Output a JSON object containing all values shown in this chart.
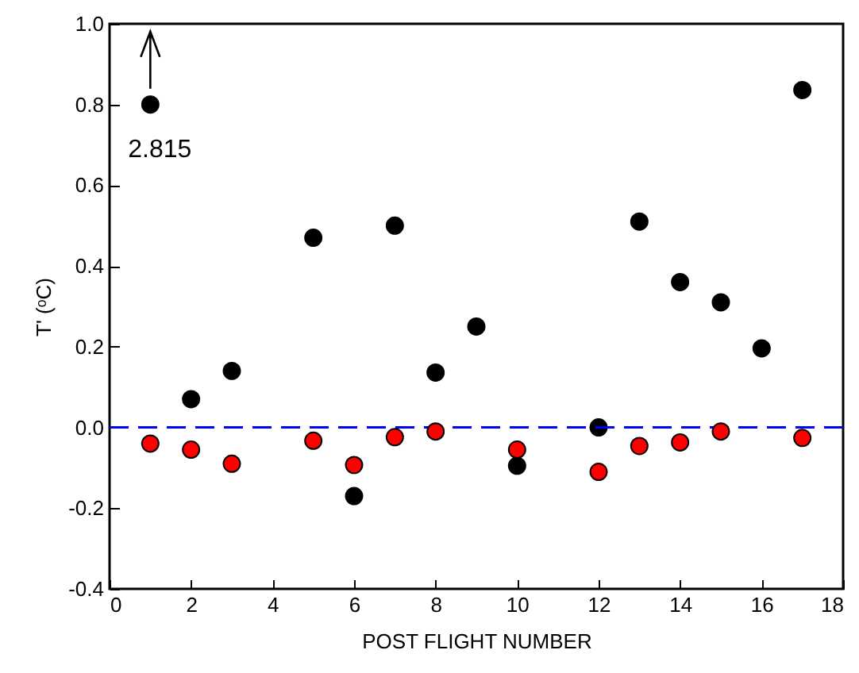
{
  "chart_data": {
    "type": "scatter",
    "xlabel": "POST FLIGHT NUMBER",
    "ylabel": "T' (ᵒC)",
    "series": [
      {
        "color": "#000000",
        "x": [
          1,
          2,
          3,
          5,
          6,
          7,
          8,
          9,
          10,
          12,
          13,
          14,
          15,
          16,
          17
        ],
        "values": [
          0.8,
          0.07,
          0.14,
          0.47,
          -0.17,
          0.5,
          0.136,
          0.25,
          -0.095,
          0.0,
          0.51,
          0.36,
          0.31,
          0.196,
          0.836
        ]
      },
      {
        "color": "#ff0000",
        "x": [
          1,
          2,
          3,
          5,
          6,
          7,
          8,
          10,
          12,
          13,
          14,
          15,
          17
        ],
        "values": [
          -0.04,
          -0.055,
          -0.09,
          -0.033,
          -0.093,
          -0.024,
          -0.01,
          -0.055,
          -0.11,
          -0.046,
          -0.037,
          -0.01,
          -0.026
        ]
      }
    ],
    "xlim": [
      0,
      18
    ],
    "xticks": [
      0,
      2,
      4,
      6,
      8,
      10,
      12,
      14,
      16,
      18
    ],
    "ylim": [
      -0.4,
      1.0
    ],
    "yticks": [
      {
        "value": -0.4,
        "label": "-0.4"
      },
      {
        "value": -0.2,
        "label": "-0.2"
      },
      {
        "value": 0,
        "label": "0.0"
      },
      {
        "value": 0.2,
        "label": "0.2"
      },
      {
        "value": 0.4,
        "label": "0.4"
      },
      {
        "value": 0.6,
        "label": "0.6"
      },
      {
        "value": 0.8,
        "label": "0.8"
      },
      {
        "value": 1.0,
        "label": "1.0"
      }
    ],
    "ref_lines": [
      {
        "axis": "y",
        "value": 0,
        "color": "#0000ff",
        "line_style": "dashed"
      }
    ],
    "annotations": [
      {
        "text": "2.815",
        "x": 1,
        "y": 0.8
      }
    ],
    "marker": "circle",
    "grid": false
  }
}
